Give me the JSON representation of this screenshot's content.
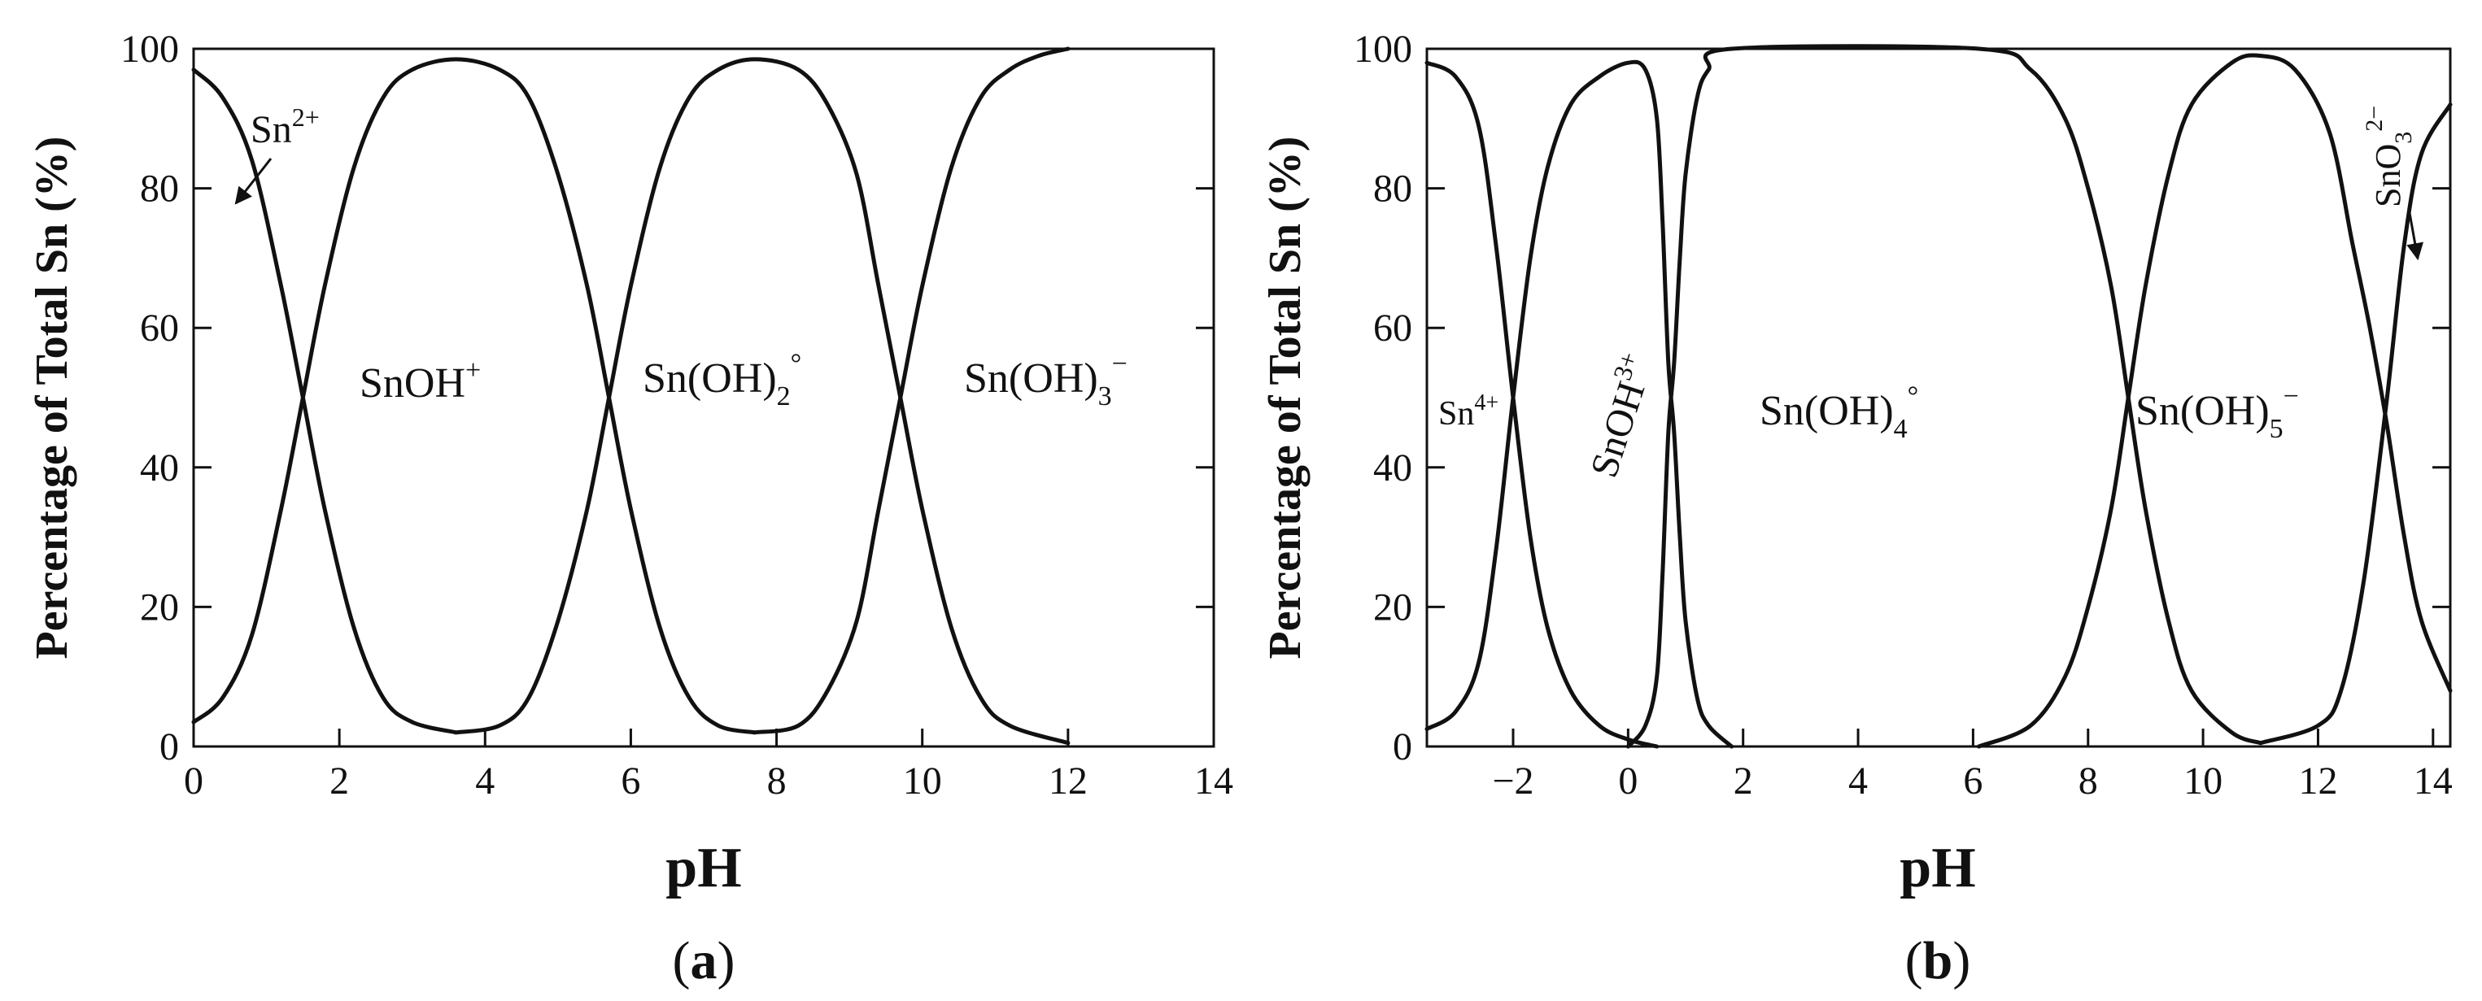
{
  "chart_data": [
    {
      "type": "line",
      "panel_label_open": "(",
      "panel_label_letter": "a",
      "panel_label_close": ")",
      "xlabel": "pH",
      "ylabel": "Percentage of Total Sn (%)",
      "xlim": [
        0,
        14
      ],
      "ylim": [
        0,
        100
      ],
      "xticks": [
        0,
        2,
        4,
        6,
        8,
        10,
        12,
        14
      ],
      "xtick_labels": [
        "0",
        "2",
        "4",
        "6",
        "8",
        "10",
        "12",
        "14"
      ],
      "yticks": [
        0,
        20,
        40,
        60,
        80,
        100
      ],
      "ytick_labels": [
        "0",
        "20",
        "40",
        "60",
        "80",
        "100"
      ],
      "grid": false,
      "series": [
        {
          "name": "Sn2+",
          "x": [
            0,
            0.4,
            0.8,
            1.2,
            1.5,
            1.8,
            2.2,
            2.6,
            3.0,
            3.6
          ],
          "y": [
            97,
            93,
            84,
            66,
            50,
            34,
            17,
            7,
            3.5,
            2
          ]
        },
        {
          "name": "SnOH+",
          "x": [
            0,
            0.4,
            0.8,
            1.2,
            1.5,
            1.8,
            2.2,
            2.6,
            3.0,
            3.6,
            4.2,
            4.6,
            5.0,
            5.4,
            5.7,
            6.0,
            6.4,
            6.8,
            7.2,
            7.7
          ],
          "y": [
            3.5,
            7,
            16,
            34,
            50,
            66,
            83,
            93,
            97,
            98.5,
            97,
            93,
            82,
            66,
            50,
            34,
            17,
            7,
            3,
            2
          ]
        },
        {
          "name": "Sn(OH)2°",
          "x": [
            3.6,
            4.2,
            4.6,
            5.0,
            5.4,
            5.7,
            6.0,
            6.4,
            6.8,
            7.2,
            7.7,
            8.3,
            8.7,
            9.1,
            9.4,
            9.7,
            10.0,
            10.4,
            10.8,
            11.2,
            12.0
          ],
          "y": [
            2,
            3,
            7,
            18,
            34,
            50,
            66,
            83,
            93,
            97,
            98.5,
            97,
            92,
            82,
            66,
            50,
            34,
            17,
            7,
            3,
            0.5
          ]
        },
        {
          "name": "Sn(OH)3−",
          "x": [
            7.7,
            8.3,
            8.7,
            9.1,
            9.4,
            9.7,
            10.0,
            10.4,
            10.8,
            11.2,
            11.6,
            12.0
          ],
          "y": [
            2,
            3,
            8,
            18,
            34,
            50,
            66,
            83,
            93,
            97,
            99,
            100
          ]
        }
      ],
      "annotations": {
        "sn2": {
          "base": "Sn",
          "sup": "2+"
        },
        "snoh": {
          "base": "SnOH",
          "sup": "+"
        },
        "snoh2": {
          "base": "Sn(OH)",
          "sub": "2",
          "sup": "°"
        },
        "snoh3": {
          "base": "Sn(OH)",
          "sub": "3",
          "sup": "−"
        }
      }
    },
    {
      "type": "line",
      "panel_label_open": "(",
      "panel_label_letter": "b",
      "panel_label_close": ")",
      "xlabel": "pH",
      "ylabel": "Percentage of Total Sn (%)",
      "xlim": [
        -3.5,
        14.3
      ],
      "ylim": [
        0,
        100
      ],
      "xticks": [
        -2,
        0,
        2,
        4,
        6,
        8,
        10,
        12,
        14
      ],
      "xtick_labels": [
        "−2",
        "0",
        "2",
        "4",
        "6",
        "8",
        "10",
        "12",
        "14"
      ],
      "yticks": [
        0,
        20,
        40,
        60,
        80,
        100
      ],
      "ytick_labels": [
        "0",
        "20",
        "40",
        "60",
        "80",
        "100"
      ],
      "grid": false,
      "series": [
        {
          "name": "Sn4+",
          "x": [
            -3.5,
            -3.0,
            -2.6,
            -2.3,
            -2.0,
            -1.7,
            -1.4,
            -1.0,
            -0.5,
            0,
            0.5
          ],
          "y": [
            98,
            96,
            89,
            72,
            50,
            30,
            17,
            8,
            3,
            1,
            0
          ]
        },
        {
          "name": "SnOH3+",
          "x": [
            -3.5,
            -3.0,
            -2.6,
            -2.3,
            -2.0,
            -1.7,
            -1.4,
            -1.0,
            -0.5,
            0,
            0.3,
            0.5,
            0.6,
            0.7,
            0.8,
            0.9,
            1.0,
            1.2,
            1.4,
            1.8
          ],
          "y": [
            2.5,
            5,
            12,
            28,
            50,
            70,
            83,
            92,
            96,
            98,
            97,
            90,
            75,
            55,
            45,
            30,
            18,
            7,
            3,
            0
          ]
        },
        {
          "name": "Sn(OH)4°",
          "x": [
            0,
            0.3,
            0.5,
            0.6,
            0.7,
            0.8,
            0.9,
            1.0,
            1.2,
            1.4,
            1.8,
            6.1,
            7.0,
            7.6,
            8.0,
            8.4,
            8.7,
            9.0,
            9.4,
            9.8,
            10.5,
            11.0
          ],
          "y": [
            0,
            3,
            10,
            25,
            45,
            55,
            70,
            82,
            93,
            97,
            100,
            100,
            97,
            90,
            80,
            66,
            50,
            34,
            18,
            8,
            2,
            0.5
          ]
        },
        {
          "name": "Sn(OH)5−",
          "x": [
            6.1,
            7.0,
            7.6,
            8.0,
            8.4,
            8.7,
            9.0,
            9.4,
            9.8,
            10.5,
            11.0,
            11.6,
            12.2,
            12.6,
            12.9,
            13.2,
            13.5,
            13.8,
            14.3
          ],
          "y": [
            0,
            3,
            10,
            20,
            34,
            50,
            66,
            82,
            92,
            98,
            99,
            97,
            88,
            72,
            60,
            46,
            30,
            18,
            8
          ]
        },
        {
          "name": "SnO3 2−",
          "x": [
            11.0,
            12.0,
            12.4,
            12.8,
            13.2,
            13.5,
            13.8,
            14.3
          ],
          "y": [
            0.5,
            3,
            8,
            24,
            50,
            72,
            85,
            92
          ]
        }
      ],
      "annotations": {
        "sn4": {
          "base": "Sn",
          "sup": "4+"
        },
        "snoh3p": {
          "base": "SnOH",
          "sup": "3+"
        },
        "snoh4": {
          "base": "Sn(OH)",
          "sub": "4",
          "sup": "°"
        },
        "snoh5": {
          "base": "Sn(OH)",
          "sub": "5",
          "sup": "−"
        },
        "sno3": {
          "base": "SnO",
          "sub": "3",
          "sup": "2−"
        }
      }
    }
  ]
}
